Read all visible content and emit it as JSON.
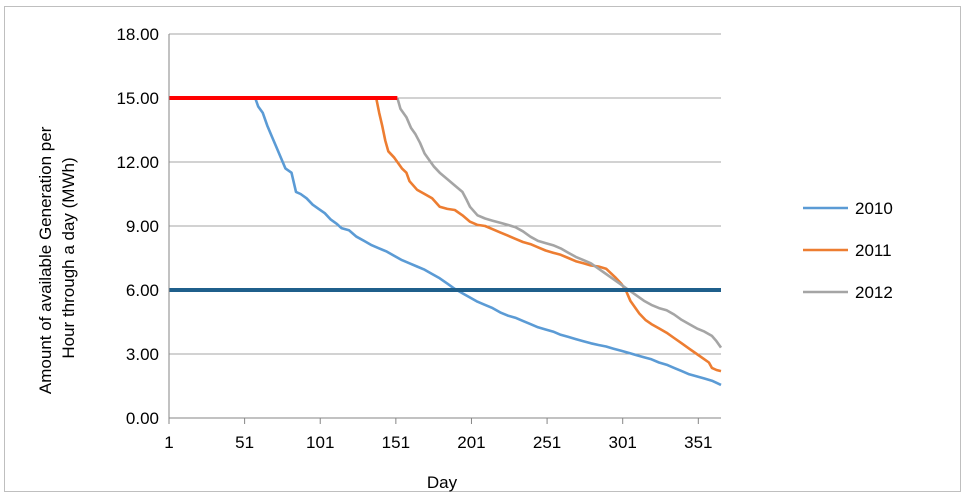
{
  "chart_data": {
    "type": "line",
    "title": "",
    "xlabel": "Day",
    "ylabel_lines": [
      "Amount of available Generation per",
      "Hour through a day (MWh)"
    ],
    "xlim": [
      1,
      366
    ],
    "ylim": [
      0,
      18
    ],
    "x_ticks": [
      {
        "value": 1,
        "label": "1"
      },
      {
        "value": 51,
        "label": "51"
      },
      {
        "value": 101,
        "label": "101"
      },
      {
        "value": 151,
        "label": "151"
      },
      {
        "value": 201,
        "label": "201"
      },
      {
        "value": 251,
        "label": "251"
      },
      {
        "value": 301,
        "label": "301"
      },
      {
        "value": 351,
        "label": "351"
      }
    ],
    "y_ticks": [
      {
        "value": 0,
        "label": "0.00"
      },
      {
        "value": 3,
        "label": "3.00"
      },
      {
        "value": 6,
        "label": "6.00"
      },
      {
        "value": 9,
        "label": "9.00"
      },
      {
        "value": 12,
        "label": "12.00"
      },
      {
        "value": 15,
        "label": "15.00"
      },
      {
        "value": 18,
        "label": "18.00"
      }
    ],
    "grid": "horizontal",
    "legend_position": "right",
    "series": [
      {
        "name": "2010",
        "color": "#5b9bd5",
        "points": [
          [
            58,
            15.0
          ],
          [
            60,
            14.6
          ],
          [
            63,
            14.3
          ],
          [
            66,
            13.7
          ],
          [
            69,
            13.2
          ],
          [
            72,
            12.7
          ],
          [
            75,
            12.2
          ],
          [
            78,
            11.7
          ],
          [
            82,
            11.5
          ],
          [
            85,
            10.6
          ],
          [
            88,
            10.5
          ],
          [
            92,
            10.3
          ],
          [
            96,
            10.0
          ],
          [
            100,
            9.8
          ],
          [
            104,
            9.6
          ],
          [
            108,
            9.3
          ],
          [
            112,
            9.1
          ],
          [
            115,
            8.9
          ],
          [
            120,
            8.8
          ],
          [
            125,
            8.5
          ],
          [
            130,
            8.3
          ],
          [
            135,
            8.1
          ],
          [
            140,
            7.95
          ],
          [
            145,
            7.8
          ],
          [
            150,
            7.6
          ],
          [
            155,
            7.4
          ],
          [
            160,
            7.25
          ],
          [
            165,
            7.1
          ],
          [
            170,
            6.95
          ],
          [
            175,
            6.75
          ],
          [
            180,
            6.55
          ],
          [
            185,
            6.3
          ],
          [
            190,
            6.05
          ],
          [
            195,
            5.85
          ],
          [
            200,
            5.65
          ],
          [
            205,
            5.45
          ],
          [
            210,
            5.3
          ],
          [
            215,
            5.15
          ],
          [
            220,
            4.95
          ],
          [
            225,
            4.8
          ],
          [
            230,
            4.7
          ],
          [
            235,
            4.55
          ],
          [
            240,
            4.4
          ],
          [
            245,
            4.25
          ],
          [
            250,
            4.15
          ],
          [
            255,
            4.05
          ],
          [
            260,
            3.9
          ],
          [
            265,
            3.8
          ],
          [
            270,
            3.7
          ],
          [
            275,
            3.6
          ],
          [
            280,
            3.5
          ],
          [
            285,
            3.42
          ],
          [
            290,
            3.35
          ],
          [
            295,
            3.25
          ],
          [
            300,
            3.15
          ],
          [
            305,
            3.05
          ],
          [
            310,
            2.95
          ],
          [
            315,
            2.85
          ],
          [
            320,
            2.75
          ],
          [
            325,
            2.6
          ],
          [
            330,
            2.5
          ],
          [
            335,
            2.35
          ],
          [
            340,
            2.2
          ],
          [
            345,
            2.05
          ],
          [
            350,
            1.95
          ],
          [
            355,
            1.85
          ],
          [
            360,
            1.75
          ],
          [
            363,
            1.65
          ],
          [
            366,
            1.55
          ]
        ]
      },
      {
        "name": "2011",
        "color": "#ed7d31",
        "points": [
          [
            138,
            15.0
          ],
          [
            140,
            14.3
          ],
          [
            142,
            13.7
          ],
          [
            144,
            13.0
          ],
          [
            146,
            12.5
          ],
          [
            150,
            12.2
          ],
          [
            155,
            11.7
          ],
          [
            158,
            11.5
          ],
          [
            160,
            11.1
          ],
          [
            165,
            10.7
          ],
          [
            170,
            10.5
          ],
          [
            175,
            10.3
          ],
          [
            180,
            9.9
          ],
          [
            185,
            9.8
          ],
          [
            190,
            9.75
          ],
          [
            195,
            9.5
          ],
          [
            200,
            9.2
          ],
          [
            205,
            9.05
          ],
          [
            210,
            9.0
          ],
          [
            215,
            8.85
          ],
          [
            220,
            8.7
          ],
          [
            225,
            8.55
          ],
          [
            230,
            8.4
          ],
          [
            235,
            8.25
          ],
          [
            240,
            8.15
          ],
          [
            245,
            8.0
          ],
          [
            250,
            7.85
          ],
          [
            255,
            7.75
          ],
          [
            260,
            7.65
          ],
          [
            265,
            7.5
          ],
          [
            270,
            7.35
          ],
          [
            275,
            7.25
          ],
          [
            280,
            7.15
          ],
          [
            285,
            7.1
          ],
          [
            290,
            7.0
          ],
          [
            293,
            6.8
          ],
          [
            296,
            6.6
          ],
          [
            300,
            6.3
          ],
          [
            303,
            6.0
          ],
          [
            306,
            5.5
          ],
          [
            309,
            5.2
          ],
          [
            312,
            4.9
          ],
          [
            316,
            4.6
          ],
          [
            320,
            4.4
          ],
          [
            325,
            4.2
          ],
          [
            330,
            4.0
          ],
          [
            335,
            3.75
          ],
          [
            340,
            3.5
          ],
          [
            345,
            3.25
          ],
          [
            350,
            3.0
          ],
          [
            355,
            2.75
          ],
          [
            358,
            2.6
          ],
          [
            360,
            2.35
          ],
          [
            363,
            2.25
          ],
          [
            366,
            2.2
          ]
        ]
      },
      {
        "name": "2012",
        "color": "#a5a5a5",
        "points": [
          [
            152,
            15.0
          ],
          [
            154,
            14.5
          ],
          [
            158,
            14.1
          ],
          [
            161,
            13.6
          ],
          [
            164,
            13.3
          ],
          [
            167,
            12.9
          ],
          [
            170,
            12.4
          ],
          [
            173,
            12.1
          ],
          [
            176,
            11.8
          ],
          [
            180,
            11.5
          ],
          [
            185,
            11.2
          ],
          [
            190,
            10.9
          ],
          [
            195,
            10.6
          ],
          [
            198,
            10.2
          ],
          [
            200,
            9.9
          ],
          [
            205,
            9.5
          ],
          [
            210,
            9.35
          ],
          [
            215,
            9.25
          ],
          [
            220,
            9.15
          ],
          [
            225,
            9.05
          ],
          [
            230,
            8.95
          ],
          [
            235,
            8.75
          ],
          [
            240,
            8.5
          ],
          [
            245,
            8.3
          ],
          [
            250,
            8.2
          ],
          [
            255,
            8.1
          ],
          [
            260,
            7.95
          ],
          [
            265,
            7.75
          ],
          [
            270,
            7.55
          ],
          [
            275,
            7.4
          ],
          [
            280,
            7.25
          ],
          [
            285,
            7.0
          ],
          [
            290,
            6.75
          ],
          [
            295,
            6.5
          ],
          [
            300,
            6.25
          ],
          [
            305,
            6.0
          ],
          [
            310,
            5.75
          ],
          [
            315,
            5.5
          ],
          [
            320,
            5.3
          ],
          [
            325,
            5.15
          ],
          [
            330,
            5.05
          ],
          [
            335,
            4.85
          ],
          [
            340,
            4.6
          ],
          [
            345,
            4.4
          ],
          [
            350,
            4.2
          ],
          [
            355,
            4.05
          ],
          [
            360,
            3.85
          ],
          [
            363,
            3.6
          ],
          [
            366,
            3.3
          ]
        ]
      }
    ],
    "reference_lines": [
      {
        "color": "#ff0000",
        "y": 15,
        "x_start": 1,
        "x_end": 152
      },
      {
        "color": "#1f5f8b",
        "y": 6,
        "x_start": 1,
        "x_end": 366
      }
    ]
  }
}
